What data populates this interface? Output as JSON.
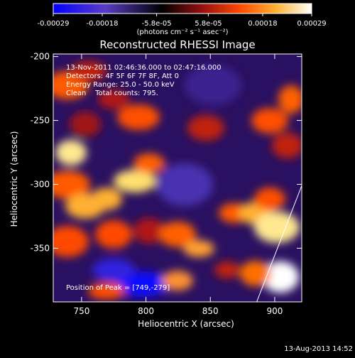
{
  "chart_data": {
    "type": "heatmap",
    "title": "Reconstructed RHESSI Image",
    "xlabel": "Heliocentric X (arcsec)",
    "ylabel": "Heliocentric Y (arcsec)",
    "xlim": [
      728,
      921
    ],
    "ylim": [
      -392,
      -198
    ],
    "x_ticks": [
      750,
      800,
      850,
      900
    ],
    "y_ticks": [
      -350,
      -300,
      -250,
      -200
    ],
    "colorbar": {
      "range": [
        -0.00029,
        0.00029
      ],
      "tick_values": [
        -0.00029,
        -0.00018,
        -5.8e-05,
        5.8e-05,
        0.00018,
        0.00029
      ],
      "tick_labels": [
        "-0.00029",
        "-0.00018",
        "-5.8e-05",
        "5.8e-05",
        "0.00018",
        "0.00029"
      ],
      "unit_label": "(photons cm⁻² s⁻¹ asec⁻²)",
      "colors": [
        "#0000ff",
        "#6040c0",
        "#000000",
        "#a01818",
        "#ff5000",
        "#ffb030",
        "#ffffff"
      ]
    },
    "annotations": {
      "time_range": "13-Nov-2011 02:46:36.000 to 02:47:16.000",
      "detectors": "Detectors: 4F 5F 6F 7F 8F, Att 0",
      "energy_range": "Energy Range: 25.0 - 50.0 keV",
      "method": "Clean    Total counts: 795.",
      "peak_position": "Position of Peak = [749,-279]"
    },
    "peak": [
      749,
      -279
    ],
    "limb_line": [
      [
        886,
        -392
      ],
      [
        921,
        -301
      ]
    ]
  },
  "timestamp": "13-Aug-2013 14:52"
}
